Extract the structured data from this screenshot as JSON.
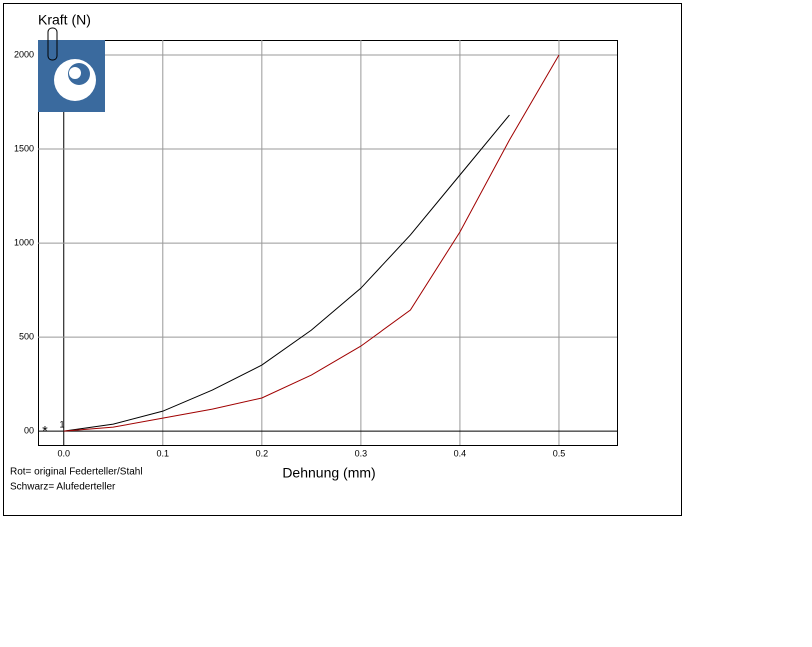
{
  "chart_data": {
    "type": "line",
    "y_label": "Kraft (N)",
    "x_label": "Dehnung (mm)",
    "annotations": [
      "Rot= original Federteller/Stahl",
      "Schwarz= Alufederteller",
      "*",
      "1"
    ],
    "x": [
      0,
      0.05,
      0.1,
      0.15,
      0.2,
      0.25,
      0.3,
      0.35,
      0.4,
      0.45,
      0.5
    ],
    "series": [
      {
        "color": "#000000",
        "values": [
          0,
          37,
          106,
          218,
          351,
          537,
          760,
          1043,
          1362,
          1681,
          null
        ]
      },
      {
        "color": "#a00000",
        "values": [
          0,
          21,
          69,
          117,
          176,
          298,
          452,
          644,
          1059,
          1548,
          2000
        ]
      }
    ],
    "xlim": [
      -0.026,
      0.5586
    ],
    "ylim": [
      -74,
      2080
    ],
    "xticks": [
      {
        "value": 0,
        "label": "0.0"
      },
      0.1,
      0.2,
      0.3,
      0.4,
      0.5
    ],
    "yticks": [
      {
        "value": 0,
        "label": "00"
      },
      500,
      1000,
      1500,
      2000
    ],
    "grid": true
  }
}
